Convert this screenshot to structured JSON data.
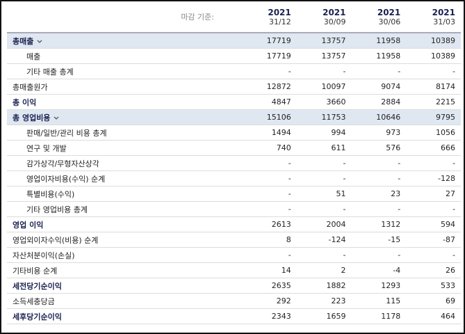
{
  "header": {
    "basis_label": "마감 기준:",
    "columns": [
      {
        "year": "2021",
        "date": "31/12"
      },
      {
        "year": "2021",
        "date": "30/09"
      },
      {
        "year": "2021",
        "date": "30/06"
      },
      {
        "year": "2021",
        "date": "31/03"
      }
    ]
  },
  "table": {
    "rows": [
      {
        "label": "총매출",
        "values": [
          17719,
          13757,
          11958,
          10389
        ]
      },
      {
        "label": "매출",
        "values": [
          17719,
          13757,
          11958,
          10389
        ]
      },
      {
        "label": "기타 매출 총계",
        "values": [
          "-",
          "-",
          "-",
          "-"
        ]
      },
      {
        "label": "총매출원가",
        "values": [
          12872,
          10097,
          9074,
          8174
        ]
      },
      {
        "label": "총 이익",
        "values": [
          4847,
          3660,
          2884,
          2215
        ]
      },
      {
        "label": "총 영업비용",
        "values": [
          15106,
          11753,
          10646,
          9795
        ]
      },
      {
        "label": "판매/일반/관리 비용 총계",
        "values": [
          1494,
          994,
          973,
          1056
        ]
      },
      {
        "label": "연구 및 개발",
        "values": [
          740,
          611,
          576,
          666
        ]
      },
      {
        "label": "감가상각/무형자산상각",
        "values": [
          "-",
          "-",
          "-",
          "-"
        ]
      },
      {
        "label": "영업이자비용(수익) 순계",
        "values": [
          "-",
          "-",
          "-",
          -128
        ]
      },
      {
        "label": "특별비용(수익)",
        "values": [
          "-",
          51,
          23,
          27
        ]
      },
      {
        "label": "기타 영업비용 총계",
        "values": [
          "-",
          "-",
          "-",
          "-"
        ]
      },
      {
        "label": "영업 이익",
        "values": [
          2613,
          2004,
          1312,
          594
        ]
      },
      {
        "label": "영업외이자수익(비용) 순계",
        "values": [
          8,
          -124,
          -15,
          -87
        ]
      },
      {
        "label": "자산처분이익(손실)",
        "values": [
          "-",
          "-",
          "-",
          "-"
        ]
      },
      {
        "label": "기타비용 순계",
        "values": [
          14,
          2,
          -4,
          26
        ]
      },
      {
        "label": "세전당기순이익",
        "values": [
          2635,
          1882,
          1293,
          533
        ]
      },
      {
        "label": "소득세충당금",
        "values": [
          292,
          223,
          115,
          69
        ]
      },
      {
        "label": "세후당기순이익",
        "values": [
          2343,
          1659,
          1178,
          464
        ]
      }
    ]
  }
}
